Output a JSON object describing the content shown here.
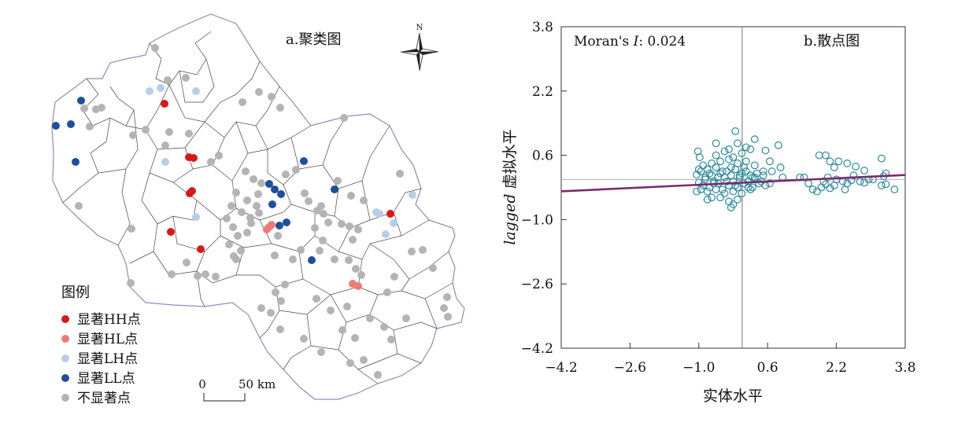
{
  "map_panel": {
    "title": "a.聚类图",
    "north_label": "N",
    "legend_title": "图例",
    "legend": [
      {
        "label": "显著HH点",
        "color": "#d7191c"
      },
      {
        "label": "显著HL点",
        "color": "#ee7b73"
      },
      {
        "label": "显著LH点",
        "color": "#b8cde8"
      },
      {
        "label": "显著LL点",
        "color": "#1f4e9c"
      },
      {
        "label": "不显著点",
        "color": "#b4b4b4"
      }
    ],
    "scale_zero": "0",
    "scale_label": "50 km",
    "boundary_color": "#9b86b6"
  },
  "chart_data": {
    "type": "scatter",
    "panel_title": "b.散点图",
    "annotation_prefix": "Moran's ",
    "annotation_italic": "I",
    "annotation_value": ": 0.024",
    "xlabel": "实体水平",
    "ylabel_italic": "lagged",
    "ylabel_rest": " 虚拟水平",
    "xlim": [
      -4.2,
      3.8
    ],
    "ylim": [
      -4.2,
      3.8
    ],
    "xticks": [
      "−4.2",
      "−2.6",
      "−1.0",
      "0.6",
      "2.2",
      "3.8"
    ],
    "yticks": [
      "3.8",
      "2.2",
      "0.6",
      "−1.0",
      "−2.6",
      "−4.2"
    ],
    "vline_x": 0.0,
    "hline_y": 0.0,
    "regression": {
      "slope": 0.024,
      "intercept": 0.0,
      "color": "#7b2a6b"
    },
    "marker_color": "#2a8a9c",
    "points": [
      [
        -1.05,
        0.12
      ],
      [
        -1.0,
        -0.08
      ],
      [
        -0.95,
        0.2
      ],
      [
        -0.9,
        -0.15
      ],
      [
        -0.85,
        0.05
      ],
      [
        -0.8,
        0.25
      ],
      [
        -0.75,
        -0.2
      ],
      [
        -0.7,
        0.1
      ],
      [
        -0.65,
        -0.05
      ],
      [
        -0.6,
        0.3
      ],
      [
        -0.55,
        -0.1
      ],
      [
        -0.5,
        0.15
      ],
      [
        -0.45,
        -0.25
      ],
      [
        -0.4,
        0.05
      ],
      [
        -0.35,
        0.2
      ],
      [
        -0.3,
        -0.15
      ],
      [
        -0.25,
        0.1
      ],
      [
        -0.2,
        -0.05
      ],
      [
        -0.15,
        0.25
      ],
      [
        -0.1,
        -0.2
      ],
      [
        -0.05,
        0.05
      ],
      [
        0.0,
        0.15
      ],
      [
        0.05,
        -0.1
      ],
      [
        0.1,
        0.2
      ],
      [
        0.15,
        -0.05
      ],
      [
        0.2,
        0.1
      ],
      [
        0.25,
        -0.2
      ],
      [
        0.3,
        0.05
      ],
      [
        0.35,
        0.15
      ],
      [
        0.4,
        -0.1
      ],
      [
        -0.9,
        0.35
      ],
      [
        -0.8,
        -0.3
      ],
      [
        -0.7,
        0.4
      ],
      [
        -0.6,
        -0.25
      ],
      [
        -0.5,
        0.45
      ],
      [
        -0.4,
        -0.35
      ],
      [
        -0.3,
        0.5
      ],
      [
        -0.2,
        -0.3
      ],
      [
        -0.1,
        0.4
      ],
      [
        0.0,
        -0.35
      ],
      [
        0.1,
        0.45
      ],
      [
        0.2,
        -0.25
      ],
      [
        0.3,
        0.35
      ],
      [
        -0.85,
        0.0
      ],
      [
        -0.75,
        0.15
      ],
      [
        -0.65,
        -0.1
      ],
      [
        -0.55,
        0.05
      ],
      [
        -0.45,
        0.2
      ],
      [
        -0.35,
        -0.05
      ],
      [
        -0.25,
        0.3
      ],
      [
        -0.15,
        -0.15
      ],
      [
        -0.05,
        0.1
      ],
      [
        0.05,
        0.3
      ],
      [
        0.15,
        -0.2
      ],
      [
        0.25,
        0.05
      ],
      [
        -1.0,
        0.25
      ],
      [
        -0.95,
        -0.25
      ],
      [
        -0.6,
        0.6
      ],
      [
        -0.4,
        0.7
      ],
      [
        -0.2,
        0.55
      ],
      [
        0.0,
        0.65
      ],
      [
        -0.3,
        0.75
      ],
      [
        -0.5,
        -0.45
      ],
      [
        -0.3,
        -0.55
      ],
      [
        -0.1,
        -0.5
      ],
      [
        -1.05,
        -0.3
      ],
      [
        -0.98,
        0.55
      ],
      [
        -1.02,
        0.7
      ],
      [
        -0.7,
        -0.45
      ],
      [
        -0.8,
        -0.5
      ],
      [
        -0.15,
        1.2
      ],
      [
        0.3,
        1.0
      ],
      [
        0.55,
        0.72
      ],
      [
        0.65,
        0.45
      ],
      [
        0.85,
        0.85
      ],
      [
        0.65,
        -0.1
      ],
      [
        0.7,
        0.2
      ],
      [
        0.9,
        0.3
      ],
      [
        0.95,
        0.05
      ],
      [
        1.35,
        0.05
      ],
      [
        -0.2,
        -0.62
      ],
      [
        -0.25,
        -0.7
      ],
      [
        0.1,
        0.8
      ],
      [
        0.2,
        0.75
      ],
      [
        -0.6,
        0.9
      ],
      [
        0.45,
        -0.05
      ],
      [
        0.5,
        0.2
      ],
      [
        0.5,
        0.1
      ],
      [
        0.55,
        -0.15
      ],
      [
        -0.1,
        0.9
      ],
      [
        1.8,
        0.6
      ],
      [
        1.95,
        0.6
      ],
      [
        2.05,
        0.45
      ],
      [
        2.15,
        0.3
      ],
      [
        2.25,
        0.45
      ],
      [
        2.45,
        0.4
      ],
      [
        2.65,
        0.32
      ],
      [
        3.25,
        0.52
      ],
      [
        2.85,
        0.22
      ],
      [
        3.35,
        0.15
      ],
      [
        1.65,
        -0.25
      ],
      [
        1.75,
        -0.3
      ],
      [
        1.85,
        -0.2
      ],
      [
        1.95,
        -0.12
      ],
      [
        2.05,
        -0.22
      ],
      [
        2.15,
        -0.15
      ],
      [
        2.35,
        -0.05
      ],
      [
        2.45,
        -0.1
      ],
      [
        2.55,
        -0.02
      ],
      [
        2.75,
        -0.05
      ],
      [
        2.85,
        -0.08
      ],
      [
        3.05,
        0.0
      ],
      [
        3.25,
        -0.15
      ],
      [
        3.35,
        -0.12
      ],
      [
        3.55,
        -0.25
      ],
      [
        2.95,
        0.0
      ],
      [
        1.45,
        0.05
      ],
      [
        1.55,
        -0.1
      ],
      [
        2.4,
        -0.25
      ],
      [
        2.0,
        0.05
      ],
      [
        3.3,
        0.08
      ],
      [
        2.6,
        0.1
      ],
      [
        1.9,
        -0.05
      ],
      [
        2.2,
        0.0
      ]
    ]
  }
}
